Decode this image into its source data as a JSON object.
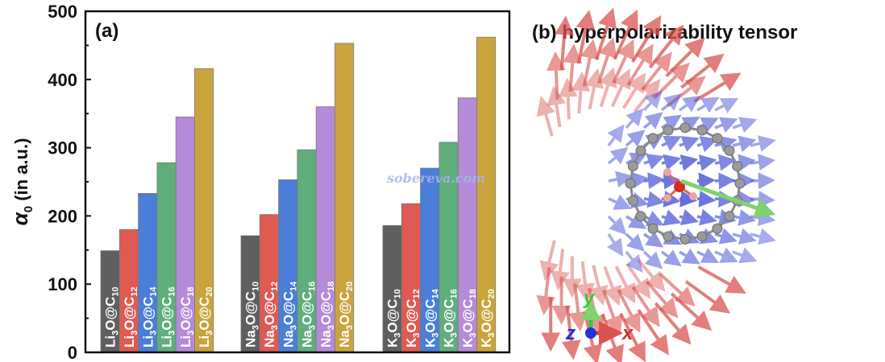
{
  "chart_data": {
    "type": "bar",
    "panel_label": "(a)",
    "title": "",
    "xlabel": "",
    "ylabel_symbol": "α",
    "ylabel_subscript": "0",
    "ylabel_text": " (in a.u.)",
    "ylim": [
      0,
      500
    ],
    "yticks": [
      0,
      100,
      200,
      300,
      400,
      500
    ],
    "tick_labels": [
      "0",
      "100",
      "200",
      "300",
      "400",
      "500"
    ],
    "groups": [
      {
        "name": "Li3O",
        "bars": [
          {
            "label_main": "Li",
            "label_sub1": "3",
            "label_mid": "O@C",
            "label_sub2": "10",
            "value": 149,
            "color": "#5f5f5f"
          },
          {
            "label_main": "Li",
            "label_sub1": "3",
            "label_mid": "O@C",
            "label_sub2": "12",
            "value": 180,
            "color": "#de5a52"
          },
          {
            "label_main": "Li",
            "label_sub1": "3",
            "label_mid": "O@C",
            "label_sub2": "14",
            "value": 233,
            "color": "#4a7ed8"
          },
          {
            "label_main": "Li",
            "label_sub1": "3",
            "label_mid": "O@C",
            "label_sub2": "16",
            "value": 278,
            "color": "#5fae7c"
          },
          {
            "label_main": "Li",
            "label_sub1": "3",
            "label_mid": "O@C",
            "label_sub2": "18",
            "value": 345,
            "color": "#b58ad9"
          },
          {
            "label_main": "Li",
            "label_sub1": "3",
            "label_mid": "O@C",
            "label_sub2": "20",
            "value": 416,
            "color": "#c9a43c"
          }
        ]
      },
      {
        "name": "Na3O",
        "bars": [
          {
            "label_main": "Na",
            "label_sub1": "3",
            "label_mid": "O@C",
            "label_sub2": "10",
            "value": 171,
            "color": "#5f5f5f"
          },
          {
            "label_main": "Na",
            "label_sub1": "3",
            "label_mid": "O@C",
            "label_sub2": "12",
            "value": 202,
            "color": "#de5a52"
          },
          {
            "label_main": "Na",
            "label_sub1": "3",
            "label_mid": "O@C",
            "label_sub2": "14",
            "value": 253,
            "color": "#4a7ed8"
          },
          {
            "label_main": "Na",
            "label_sub1": "3",
            "label_mid": "O@C",
            "label_sub2": "16",
            "value": 297,
            "color": "#5fae7c"
          },
          {
            "label_main": "Na",
            "label_sub1": "3",
            "label_mid": "O@C",
            "label_sub2": "18",
            "value": 360,
            "color": "#b58ad9"
          },
          {
            "label_main": "Na",
            "label_sub1": "3",
            "label_mid": "O@C",
            "label_sub2": "20",
            "value": 453,
            "color": "#c9a43c"
          }
        ]
      },
      {
        "name": "K3O",
        "bars": [
          {
            "label_main": "K",
            "label_sub1": "3",
            "label_mid": "O@C",
            "label_sub2": "10",
            "value": 186,
            "color": "#5f5f5f"
          },
          {
            "label_main": "K",
            "label_sub1": "3",
            "label_mid": "O@C",
            "label_sub2": "12",
            "value": 218,
            "color": "#de5a52"
          },
          {
            "label_main": "K",
            "label_sub1": "3",
            "label_mid": "O@C",
            "label_sub2": "14",
            "value": 270,
            "color": "#4a7ed8"
          },
          {
            "label_main": "K",
            "label_sub1": "3",
            "label_mid": "O@C",
            "label_sub2": "16",
            "value": 308,
            "color": "#5fae7c"
          },
          {
            "label_main": "K",
            "label_sub1": "3",
            "label_mid": "O@C",
            "label_sub2": "18",
            "value": 373,
            "color": "#b58ad9"
          },
          {
            "label_main": "K",
            "label_sub1": "3",
            "label_mid": "O@C",
            "label_sub2": "20",
            "value": 462,
            "color": "#c9a43c"
          }
        ]
      }
    ],
    "watermark": "sobereva.com"
  },
  "panel_b": {
    "title": "(b) hyperpolarizability tensor",
    "axes": {
      "x": "x",
      "y": "y",
      "z": "z"
    },
    "colors": {
      "outer": "#d9534f",
      "inner": "#4a55d6",
      "vector": "#7ed36a",
      "atom": "#9a9a9a",
      "center": "#d62a1e",
      "ligand": "#e8a6a6"
    }
  }
}
